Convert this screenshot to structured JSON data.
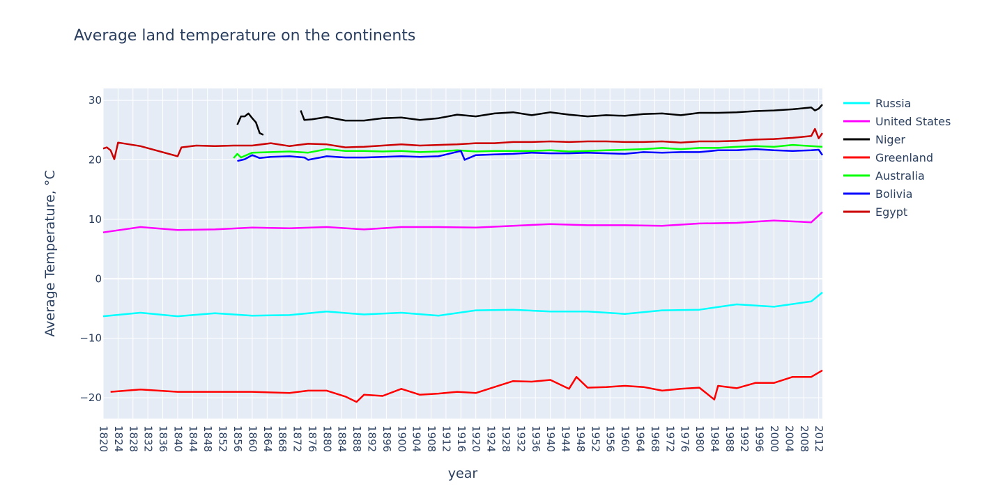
{
  "chart_data": {
    "type": "line",
    "title": "Average land temperature on the continents",
    "xlabel": "year",
    "ylabel": "Average Temperature, °C",
    "xlim": [
      1820,
      2013
    ],
    "ylim": [
      -23.5,
      32
    ],
    "x_ticks": [
      1820,
      1824,
      1828,
      1832,
      1836,
      1840,
      1844,
      1848,
      1852,
      1856,
      1860,
      1864,
      1868,
      1872,
      1876,
      1880,
      1884,
      1888,
      1892,
      1896,
      1900,
      1904,
      1908,
      1912,
      1916,
      1920,
      1924,
      1928,
      1932,
      1936,
      1940,
      1944,
      1948,
      1952,
      1956,
      1960,
      1964,
      1968,
      1972,
      1976,
      1980,
      1984,
      1988,
      1992,
      1996,
      2000,
      2004,
      2008,
      2012
    ],
    "y_ticks": [
      -20,
      -10,
      0,
      10,
      20,
      30
    ],
    "y_tick_labels": [
      "−20",
      "−10",
      "0",
      "10",
      "20",
      "30"
    ],
    "legend_position": "top-right",
    "grid": true,
    "plot_bgcolor": "#e5ecf6",
    "series": [
      {
        "name": "Russia",
        "color": "#00ffff",
        "x": [
          1820,
          1830,
          1840,
          1850,
          1860,
          1870,
          1880,
          1890,
          1900,
          1910,
          1920,
          1930,
          1940,
          1950,
          1960,
          1970,
          1980,
          1990,
          2000,
          2010,
          2013
        ],
        "y": [
          -6.3,
          -5.7,
          -6.3,
          -5.8,
          -6.2,
          -6.1,
          -5.5,
          -6.0,
          -5.7,
          -6.2,
          -5.3,
          -5.2,
          -5.5,
          -5.5,
          -5.9,
          -5.3,
          -5.2,
          -4.3,
          -4.7,
          -3.8,
          -2.3
        ]
      },
      {
        "name": "United States",
        "color": "#ff00ff",
        "x": [
          1820,
          1830,
          1840,
          1850,
          1860,
          1870,
          1880,
          1890,
          1900,
          1910,
          1920,
          1930,
          1940,
          1950,
          1960,
          1970,
          1980,
          1990,
          2000,
          2010,
          2013
        ],
        "y": [
          7.8,
          8.7,
          8.2,
          8.3,
          8.6,
          8.5,
          8.7,
          8.3,
          8.7,
          8.7,
          8.6,
          8.9,
          9.2,
          9.0,
          9.0,
          8.9,
          9.3,
          9.4,
          9.8,
          9.5,
          11.2
        ]
      },
      {
        "name": "Niger",
        "color": "#000000",
        "x": [
          1856,
          1857,
          1858,
          1859,
          1860,
          1861,
          1862,
          1863,
          null,
          1873,
          1874,
          1876,
          1880,
          1885,
          1890,
          1895,
          1900,
          1905,
          1910,
          1915,
          1920,
          1925,
          1930,
          1935,
          1940,
          1945,
          1950,
          1955,
          1960,
          1965,
          1970,
          1975,
          1980,
          1985,
          1990,
          1995,
          2000,
          2005,
          2010,
          2011,
          2012,
          2013
        ],
        "y": [
          25.9,
          27.3,
          27.3,
          27.8,
          27.0,
          26.3,
          24.5,
          24.2,
          null,
          28.3,
          26.7,
          26.8,
          27.2,
          26.6,
          26.6,
          27.0,
          27.1,
          26.7,
          27.0,
          27.6,
          27.3,
          27.8,
          28.0,
          27.5,
          28.0,
          27.6,
          27.3,
          27.5,
          27.4,
          27.7,
          27.8,
          27.5,
          27.9,
          27.9,
          28.0,
          28.2,
          28.3,
          28.5,
          28.8,
          28.3,
          28.6,
          29.3
        ]
      },
      {
        "name": "Greenland",
        "color": "#ff0000",
        "x": [
          1822,
          1830,
          1840,
          1850,
          1860,
          1870,
          1875,
          1880,
          1885,
          1888,
          1890,
          1895,
          1900,
          1905,
          1910,
          1915,
          1920,
          1925,
          1930,
          1935,
          1940,
          1945,
          1947,
          1950,
          1955,
          1960,
          1965,
          1970,
          1975,
          1980,
          1984,
          1985,
          1990,
          1995,
          2000,
          2005,
          2010,
          2013
        ],
        "y": [
          -19.0,
          -18.6,
          -19.0,
          -19.0,
          -19.0,
          -19.2,
          -18.8,
          -18.8,
          -19.8,
          -20.7,
          -19.5,
          -19.7,
          -18.5,
          -19.5,
          -19.3,
          -19.0,
          -19.2,
          -18.2,
          -17.2,
          -17.3,
          -17.0,
          -18.5,
          -16.5,
          -18.3,
          -18.2,
          -18.0,
          -18.2,
          -18.8,
          -18.5,
          -18.3,
          -20.3,
          -18.0,
          -18.4,
          -17.5,
          -17.5,
          -16.5,
          -16.5,
          -15.4
        ]
      },
      {
        "name": "Australia",
        "color": "#00ff00",
        "x": [
          1855,
          1856,
          1857,
          1860,
          1865,
          1870,
          1875,
          1880,
          1885,
          1890,
          1895,
          1900,
          1905,
          1910,
          1915,
          1920,
          1925,
          1930,
          1935,
          1940,
          1945,
          1950,
          1955,
          1960,
          1965,
          1970,
          1975,
          1980,
          1985,
          1990,
          1995,
          2000,
          2005,
          2010,
          2013
        ],
        "y": [
          20.3,
          21.0,
          20.4,
          21.2,
          21.3,
          21.4,
          21.2,
          21.8,
          21.5,
          21.5,
          21.4,
          21.5,
          21.3,
          21.4,
          21.6,
          21.4,
          21.5,
          21.5,
          21.5,
          21.6,
          21.4,
          21.5,
          21.6,
          21.7,
          21.8,
          22.0,
          21.8,
          22.0,
          22.0,
          22.2,
          22.3,
          22.2,
          22.5,
          22.3,
          22.2
        ]
      },
      {
        "name": "Bolivia",
        "color": "#0000ff",
        "x": [
          1856,
          1858,
          1860,
          1862,
          1865,
          1870,
          1874,
          1875,
          1880,
          1885,
          1890,
          1895,
          1900,
          1905,
          1910,
          1916,
          1917,
          1920,
          1925,
          1930,
          1935,
          1940,
          1945,
          1950,
          1955,
          1960,
          1965,
          1970,
          1975,
          1980,
          1985,
          1990,
          1995,
          2000,
          2005,
          2010,
          2012,
          2013
        ],
        "y": [
          19.8,
          20.1,
          20.8,
          20.3,
          20.5,
          20.6,
          20.4,
          20.0,
          20.6,
          20.4,
          20.4,
          20.5,
          20.6,
          20.5,
          20.6,
          21.5,
          20.0,
          20.8,
          20.9,
          21.0,
          21.2,
          21.1,
          21.1,
          21.2,
          21.1,
          21.0,
          21.3,
          21.2,
          21.3,
          21.3,
          21.6,
          21.6,
          21.8,
          21.6,
          21.5,
          21.6,
          21.7,
          20.8
        ]
      },
      {
        "name": "Egypt",
        "color": "#cc0000",
        "x": [
          1820,
          1821,
          1822,
          1823,
          1824,
          1830,
          1840,
          1841,
          1845,
          1850,
          1855,
          1860,
          1865,
          1870,
          1875,
          1880,
          1885,
          1890,
          1895,
          1900,
          1905,
          1910,
          1915,
          1920,
          1925,
          1930,
          1935,
          1940,
          1945,
          1950,
          1955,
          1960,
          1965,
          1970,
          1975,
          1980,
          1985,
          1990,
          1995,
          2000,
          2005,
          2010,
          2011,
          2012,
          2013
        ],
        "y": [
          21.9,
          22.1,
          21.6,
          20.1,
          22.9,
          22.3,
          20.6,
          22.1,
          22.4,
          22.3,
          22.4,
          22.4,
          22.8,
          22.3,
          22.7,
          22.6,
          22.1,
          22.2,
          22.4,
          22.6,
          22.4,
          22.5,
          22.6,
          22.8,
          22.8,
          23.0,
          23.0,
          23.1,
          23.0,
          23.1,
          23.1,
          23.0,
          23.0,
          23.1,
          22.9,
          23.1,
          23.1,
          23.2,
          23.4,
          23.5,
          23.7,
          24.0,
          25.2,
          23.6,
          24.5
        ]
      }
    ]
  }
}
